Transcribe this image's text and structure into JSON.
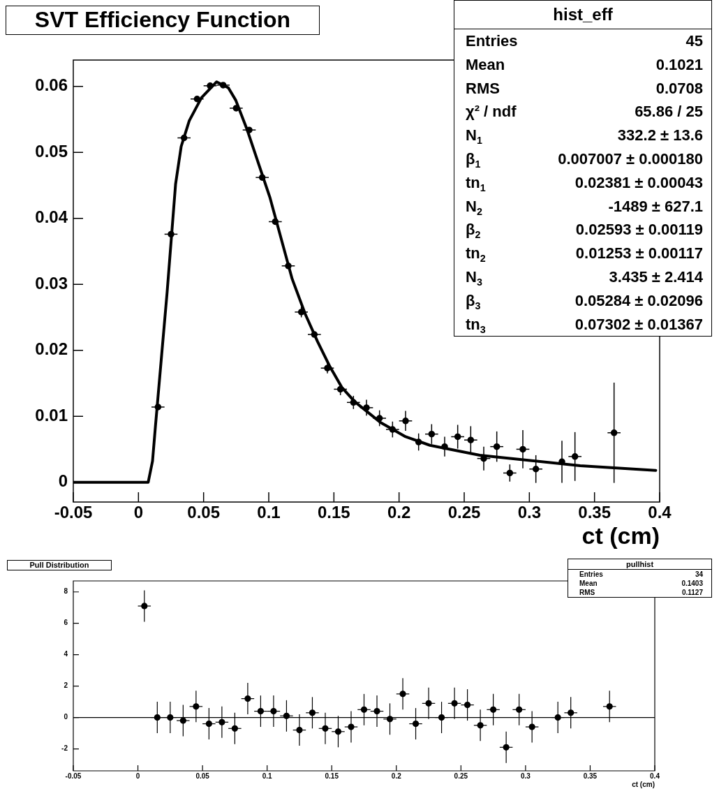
{
  "chart_data": [
    {
      "type": "scatter",
      "title": "SVT Efficiency Function",
      "xlabel": "ct (cm)",
      "xlim": [
        -0.05,
        0.4
      ],
      "ylim": [
        -0.003,
        0.064
      ],
      "xticks": [
        -0.05,
        0,
        0.05,
        0.1,
        0.15,
        0.2,
        0.25,
        0.3,
        0.35,
        0.4
      ],
      "yticks": [
        0,
        0.01,
        0.02,
        0.03,
        0.04,
        0.05,
        0.06
      ],
      "series": [
        {
          "type": "scatter",
          "color": "#000000",
          "x": [
            0.015,
            0.025,
            0.035,
            0.045,
            0.055,
            0.065,
            0.075,
            0.085,
            0.095,
            0.105,
            0.115,
            0.125,
            0.135,
            0.145,
            0.155,
            0.165,
            0.175,
            0.185,
            0.195,
            0.205,
            0.215,
            0.225,
            0.235,
            0.245,
            0.255,
            0.265,
            0.275,
            0.285,
            0.295,
            0.305,
            0.325,
            0.335,
            0.365
          ],
          "values": [
            0.0114,
            0.0376,
            0.0522,
            0.0581,
            0.0601,
            0.0602,
            0.0567,
            0.0534,
            0.0462,
            0.0395,
            0.0328,
            0.0258,
            0.0224,
            0.0173,
            0.0141,
            0.0121,
            0.0113,
            0.0097,
            0.008,
            0.0093,
            0.0061,
            0.0073,
            0.0054,
            0.0069,
            0.0064,
            0.0036,
            0.0054,
            0.0014,
            0.005,
            0.002,
            0.0031,
            0.0039,
            0.0075
          ],
          "errors": [
            null,
            null,
            null,
            0.0004,
            0.0004,
            null,
            0.0004,
            null,
            null,
            null,
            null,
            0.0008,
            null,
            0.0008,
            0.0009,
            0.001,
            0.0012,
            0.0012,
            0.0012,
            0.0015,
            0.0013,
            0.0015,
            0.0015,
            0.0018,
            0.0021,
            0.0018,
            0.0023,
            0.0013,
            0.0029,
            0.0021,
            0.0032,
            0.0037,
            0.0076
          ],
          "xerrors": [
            0.005,
            0.005,
            0.005,
            0.005,
            0.005,
            0.005,
            0.005,
            0.005,
            0.005,
            0.005,
            0.005,
            0.005,
            0.005,
            0.005,
            0.005,
            0.005,
            0.005,
            0.005,
            0.005,
            0.005,
            null,
            0.005,
            null,
            0.005,
            0.005,
            0.005,
            0.005,
            0.005,
            0.005,
            0.005,
            null,
            0.005,
            0.005
          ]
        },
        {
          "type": "line",
          "color": "#000000",
          "x": [
            -0.05,
            0.0075,
            0.0108,
            0.013,
            0.022,
            0.0285,
            0.0328,
            0.039,
            0.0484,
            0.06,
            0.069,
            0.0747,
            0.0833,
            0.101,
            0.118,
            0.128,
            0.1375,
            0.147,
            0.156,
            0.166,
            0.1855,
            0.205,
            0.2237,
            0.262,
            0.3005,
            0.339,
            0.397
          ],
          "values": [
            0,
            0,
            0.0032,
            0.0084,
            0.0288,
            0.0452,
            0.0509,
            0.0548,
            0.0583,
            0.0607,
            0.0598,
            0.0579,
            0.0535,
            0.0431,
            0.0308,
            0.0255,
            0.0213,
            0.0175,
            0.0144,
            0.0122,
            0.0091,
            0.0069,
            0.0056,
            0.0041,
            0.0033,
            0.0025,
            0.0018
          ]
        }
      ],
      "annotations": [
        "hist_eff",
        "Entries",
        "45",
        "Mean",
        "0.1021",
        "RMS",
        "0.0708",
        "χ² / ndf",
        "65.86 / 25",
        "N$_{1}$",
        "332.2 ± 13.6",
        "β$_{1}$",
        "0.007007 ± 0.000180",
        "tn$_{1}$",
        "0.02381 ± 0.00043",
        "N$_{2}$",
        "-1489 ± 627.1",
        "β$_{2}$",
        "0.02593 ± 0.00119",
        "tn$_{2}$",
        "0.01253 ± 0.00117",
        "N$_{3}$",
        "3.435 ± 2.414",
        "β$_{3}$",
        "0.05284 ± 0.02096",
        "tn$_{3}$",
        "0.07302 ± 0.01367"
      ]
    },
    {
      "type": "scatter",
      "title": "Pull Distribution",
      "xlabel": "ct (cm)",
      "xlim": [
        -0.05,
        0.4
      ],
      "ylim": [
        -3.4,
        8.7
      ],
      "xticks": [
        -0.05,
        0,
        0.05,
        0.1,
        0.15,
        0.2,
        0.25,
        0.3,
        0.35,
        0.4
      ],
      "yticks": [
        -2,
        0,
        2,
        4,
        6,
        8
      ],
      "series": [
        {
          "type": "scatter",
          "color": "#000000",
          "x": [
            0.005,
            0.015,
            0.025,
            0.035,
            0.045,
            0.055,
            0.065,
            0.075,
            0.085,
            0.095,
            0.105,
            0.115,
            0.125,
            0.135,
            0.145,
            0.155,
            0.165,
            0.175,
            0.185,
            0.195,
            0.205,
            0.215,
            0.225,
            0.235,
            0.245,
            0.255,
            0.265,
            0.275,
            0.285,
            0.295,
            0.305,
            0.325,
            0.335,
            0.365
          ],
          "values": [
            7.1,
            0,
            0,
            -0.2,
            0.7,
            -0.4,
            -0.3,
            -0.7,
            1.2,
            0.4,
            0.4,
            0.1,
            -0.8,
            0.3,
            -0.7,
            -0.9,
            -0.6,
            0.5,
            0.4,
            -0.1,
            1.5,
            -0.4,
            0.9,
            0,
            0.9,
            0.8,
            -0.5,
            0.5,
            -1.9,
            0.5,
            -0.6,
            0,
            0.3,
            0.7
          ],
          "errors": [
            1,
            1,
            1,
            1,
            1,
            1,
            1,
            1,
            1,
            1,
            1,
            1,
            1,
            1,
            1,
            1,
            1,
            1,
            1,
            1,
            1,
            1,
            1,
            1,
            1,
            1,
            1,
            1,
            1,
            1,
            1,
            1,
            1,
            1
          ],
          "xerrors": [
            0.005,
            0.005,
            0.005,
            0.005,
            0.005,
            0.005,
            0.005,
            0.005,
            0.005,
            0.005,
            0.005,
            0.005,
            0.005,
            0.005,
            0.005,
            0.005,
            0.005,
            0.005,
            0.005,
            0.005,
            0.005,
            0.005,
            0.005,
            0.005,
            0.005,
            0.005,
            0.005,
            0.005,
            0.005,
            0.005,
            0.005,
            0.005,
            0.005,
            0.005
          ]
        }
      ],
      "ref_lines": [
        {
          "axis": "y",
          "value": 0,
          "color": "#000000"
        }
      ],
      "annotations": [
        "pullhist",
        "Entries",
        "34",
        "Mean",
        "0.1403",
        "RMS",
        "0.1127"
      ]
    }
  ]
}
